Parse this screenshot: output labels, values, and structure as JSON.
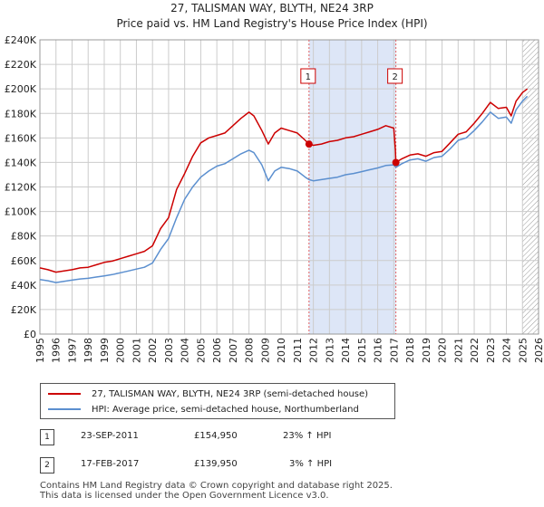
{
  "title": {
    "line1": "27, TALISMAN WAY, BLYTH, NE24 3RP",
    "line2": "Price paid vs. HM Land Registry's House Price Index (HPI)"
  },
  "colors": {
    "property": "#cc0000",
    "hpi": "#5b8fcf",
    "shade": "#dde6f7",
    "grid": "#cccccc",
    "marker_dash": "#e06060"
  },
  "chart_data": {
    "type": "line",
    "title": "27, TALISMAN WAY, BLYTH, NE24 3RP — Price paid vs. HM Land Registry's House Price Index (HPI)",
    "xlabel": "",
    "ylabel": "",
    "xlim": [
      1995,
      2026
    ],
    "ylim": [
      0,
      240000
    ],
    "x_ticks": [
      "1995",
      "1996",
      "1997",
      "1998",
      "1999",
      "2000",
      "2001",
      "2002",
      "2003",
      "2004",
      "2005",
      "2006",
      "2007",
      "2008",
      "2009",
      "2010",
      "2011",
      "2012",
      "2013",
      "2014",
      "2015",
      "2016",
      "2017",
      "2018",
      "2019",
      "2020",
      "2021",
      "2022",
      "2023",
      "2024",
      "2025",
      "2026"
    ],
    "y_ticks": [
      {
        "value": 0,
        "label": "£0"
      },
      {
        "value": 20000,
        "label": "£20K"
      },
      {
        "value": 40000,
        "label": "£40K"
      },
      {
        "value": 60000,
        "label": "£60K"
      },
      {
        "value": 80000,
        "label": "£80K"
      },
      {
        "value": 100000,
        "label": "£100K"
      },
      {
        "value": 120000,
        "label": "£120K"
      },
      {
        "value": 140000,
        "label": "£140K"
      },
      {
        "value": 160000,
        "label": "£160K"
      },
      {
        "value": 180000,
        "label": "£180K"
      },
      {
        "value": 200000,
        "label": "£200K"
      },
      {
        "value": 220000,
        "label": "£220K"
      },
      {
        "value": 240000,
        "label": "£240K"
      }
    ],
    "grid": true,
    "shaded_region": [
      2011.73,
      2017.13
    ],
    "hatched_future_from": 2025.0,
    "series": [
      {
        "name": "27, TALISMAN WAY, BLYTH, NE24 3RP (semi-detached house)",
        "color": "#cc0000",
        "points": [
          [
            1995.0,
            54000
          ],
          [
            1995.5,
            52500
          ],
          [
            1996.0,
            50500
          ],
          [
            1996.5,
            51500
          ],
          [
            1997.0,
            52500
          ],
          [
            1997.5,
            54000
          ],
          [
            1998.0,
            54500
          ],
          [
            1998.5,
            56500
          ],
          [
            1999.0,
            58500
          ],
          [
            1999.5,
            59500
          ],
          [
            2000.0,
            61500
          ],
          [
            2000.5,
            63500
          ],
          [
            2001.0,
            65500
          ],
          [
            2001.5,
            67500
          ],
          [
            2002.0,
            72000
          ],
          [
            2002.5,
            86000
          ],
          [
            2003.0,
            95000
          ],
          [
            2003.5,
            118000
          ],
          [
            2004.0,
            131000
          ],
          [
            2004.5,
            145000
          ],
          [
            2005.0,
            156000
          ],
          [
            2005.5,
            160000
          ],
          [
            2006.0,
            162000
          ],
          [
            2006.5,
            164000
          ],
          [
            2007.0,
            170000
          ],
          [
            2007.5,
            176000
          ],
          [
            2008.0,
            181000
          ],
          [
            2008.3,
            178000
          ],
          [
            2008.8,
            166000
          ],
          [
            2009.2,
            155000
          ],
          [
            2009.6,
            164000
          ],
          [
            2010.0,
            168000
          ],
          [
            2010.5,
            166000
          ],
          [
            2011.0,
            164000
          ],
          [
            2011.5,
            158000
          ],
          [
            2011.73,
            154950
          ],
          [
            2012.0,
            154000
          ],
          [
            2012.5,
            155000
          ],
          [
            2013.0,
            157000
          ],
          [
            2013.5,
            158000
          ],
          [
            2014.0,
            160000
          ],
          [
            2014.5,
            161000
          ],
          [
            2015.0,
            163000
          ],
          [
            2015.5,
            165000
          ],
          [
            2016.0,
            167000
          ],
          [
            2016.5,
            170000
          ],
          [
            2017.0,
            168000
          ],
          [
            2017.1,
            150000
          ],
          [
            2017.13,
            139950
          ],
          [
            2017.5,
            143000
          ],
          [
            2018.0,
            146000
          ],
          [
            2018.5,
            147000
          ],
          [
            2019.0,
            145000
          ],
          [
            2019.5,
            148000
          ],
          [
            2020.0,
            149000
          ],
          [
            2020.5,
            156000
          ],
          [
            2021.0,
            163000
          ],
          [
            2021.5,
            165000
          ],
          [
            2022.0,
            172000
          ],
          [
            2022.5,
            180000
          ],
          [
            2023.0,
            189000
          ],
          [
            2023.5,
            184000
          ],
          [
            2024.0,
            185000
          ],
          [
            2024.3,
            178000
          ],
          [
            2024.6,
            190000
          ],
          [
            2025.0,
            197000
          ],
          [
            2025.3,
            200000
          ]
        ]
      },
      {
        "name": "HPI: Average price, semi-detached house, Northumberland",
        "color": "#5b8fcf",
        "points": [
          [
            1995.0,
            44500
          ],
          [
            1995.5,
            43500
          ],
          [
            1996.0,
            42000
          ],
          [
            1996.5,
            43000
          ],
          [
            1997.0,
            44000
          ],
          [
            1997.5,
            45000
          ],
          [
            1998.0,
            45500
          ],
          [
            1998.5,
            46500
          ],
          [
            1999.0,
            47500
          ],
          [
            1999.5,
            48500
          ],
          [
            2000.0,
            50000
          ],
          [
            2000.5,
            51500
          ],
          [
            2001.0,
            53000
          ],
          [
            2001.5,
            54500
          ],
          [
            2002.0,
            58000
          ],
          [
            2002.5,
            69000
          ],
          [
            2003.0,
            78000
          ],
          [
            2003.5,
            95000
          ],
          [
            2004.0,
            110000
          ],
          [
            2004.5,
            120000
          ],
          [
            2005.0,
            128000
          ],
          [
            2005.5,
            133000
          ],
          [
            2006.0,
            137000
          ],
          [
            2006.5,
            139000
          ],
          [
            2007.0,
            143000
          ],
          [
            2007.5,
            147000
          ],
          [
            2008.0,
            150000
          ],
          [
            2008.3,
            148000
          ],
          [
            2008.8,
            138000
          ],
          [
            2009.2,
            125000
          ],
          [
            2009.6,
            133000
          ],
          [
            2010.0,
            136000
          ],
          [
            2010.5,
            135000
          ],
          [
            2011.0,
            133000
          ],
          [
            2011.5,
            128000
          ],
          [
            2011.73,
            126000
          ],
          [
            2012.0,
            125000
          ],
          [
            2012.5,
            126000
          ],
          [
            2013.0,
            127000
          ],
          [
            2013.5,
            128000
          ],
          [
            2014.0,
            130000
          ],
          [
            2014.5,
            131000
          ],
          [
            2015.0,
            132500
          ],
          [
            2015.5,
            134000
          ],
          [
            2016.0,
            135500
          ],
          [
            2016.5,
            137500
          ],
          [
            2017.0,
            138000
          ],
          [
            2017.13,
            136000
          ],
          [
            2017.5,
            139000
          ],
          [
            2018.0,
            142000
          ],
          [
            2018.5,
            143000
          ],
          [
            2019.0,
            141000
          ],
          [
            2019.5,
            144000
          ],
          [
            2020.0,
            145000
          ],
          [
            2020.5,
            151000
          ],
          [
            2021.0,
            158000
          ],
          [
            2021.5,
            160000
          ],
          [
            2022.0,
            166000
          ],
          [
            2022.5,
            173000
          ],
          [
            2023.0,
            181000
          ],
          [
            2023.5,
            176000
          ],
          [
            2024.0,
            177000
          ],
          [
            2024.3,
            172000
          ],
          [
            2024.6,
            183000
          ],
          [
            2025.0,
            190000
          ],
          [
            2025.3,
            194000
          ]
        ]
      }
    ],
    "sale_markers": [
      {
        "label": "1",
        "x": 2011.73,
        "y": 154950
      },
      {
        "label": "2",
        "x": 2017.13,
        "y": 139950
      }
    ]
  },
  "legend": {
    "property_label": "27, TALISMAN WAY, BLYTH, NE24 3RP (semi-detached house)",
    "hpi_label": "HPI: Average price, semi-detached house, Northumberland"
  },
  "transactions": [
    {
      "num": "1",
      "date": "23-SEP-2011",
      "price": "£154,950",
      "hpi": "23% ↑ HPI"
    },
    {
      "num": "2",
      "date": "17-FEB-2017",
      "price": "£139,950",
      "hpi": "3% ↑ HPI"
    }
  ],
  "footer": {
    "line1": "Contains HM Land Registry data © Crown copyright and database right 2025.",
    "line2": "This data is licensed under the Open Government Licence v3.0."
  }
}
